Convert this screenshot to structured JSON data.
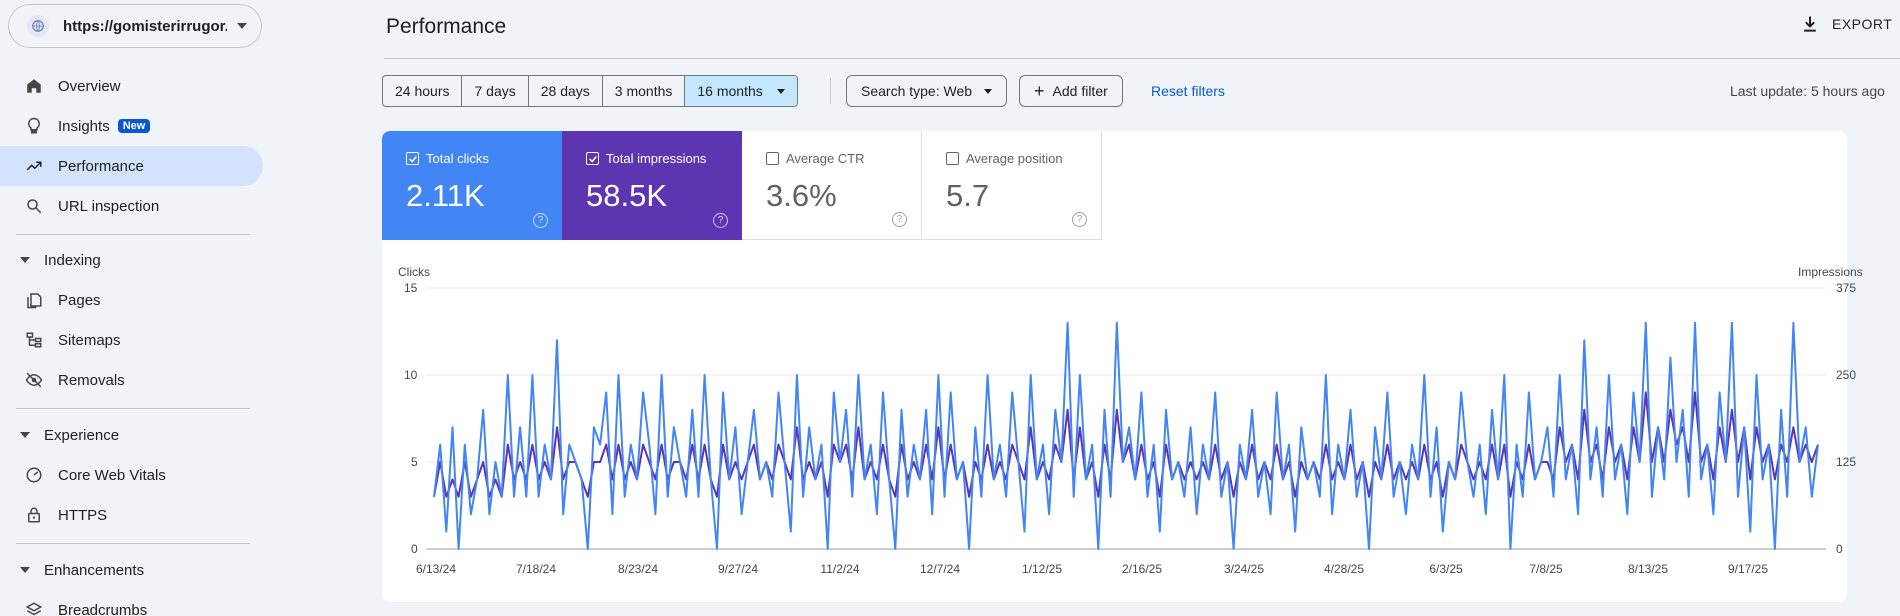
{
  "property": {
    "url": "https://gomisterirrugor..."
  },
  "nav": {
    "overview": "Overview",
    "insights": "Insights",
    "insights_badge": "New",
    "performance": "Performance",
    "url_inspection": "URL inspection",
    "indexing": "Indexing",
    "pages": "Pages",
    "sitemaps": "Sitemaps",
    "removals": "Removals",
    "experience": "Experience",
    "core_web_vitals": "Core Web Vitals",
    "https": "HTTPS",
    "enhancements": "Enhancements",
    "breadcrumbs": "Breadcrumbs"
  },
  "header": {
    "title": "Performance",
    "export_label": "EXPORT"
  },
  "filters": {
    "ranges": [
      "24 hours",
      "7 days",
      "28 days",
      "3 months",
      "16 months"
    ],
    "selected_range": "16 months",
    "search_type": "Search type: Web",
    "add_filter": "Add filter",
    "reset": "Reset filters",
    "last_update": "Last update: 5 hours ago"
  },
  "metrics": {
    "clicks": {
      "label": "Total clicks",
      "value": "2.11K",
      "checked": true,
      "color": "#4285f4"
    },
    "impressions": {
      "label": "Total impressions",
      "value": "58.5K",
      "checked": true,
      "color": "#5e35b1"
    },
    "ctr": {
      "label": "Average CTR",
      "value": "3.6%",
      "checked": false
    },
    "position": {
      "label": "Average position",
      "value": "5.7",
      "checked": false
    }
  },
  "chart_data": {
    "type": "line",
    "left_axis_label": "Clicks",
    "right_axis_label": "Impressions",
    "left_ylim": [
      0,
      15
    ],
    "right_ylim": [
      0,
      375
    ],
    "left_ticks": [
      "15",
      "10",
      "5",
      "0"
    ],
    "right_ticks": [
      "375",
      "250",
      "125",
      "0"
    ],
    "x_ticks": [
      "6/13/24",
      "7/18/24",
      "8/23/24",
      "9/27/24",
      "11/2/24",
      "12/7/24",
      "1/12/25",
      "2/16/25",
      "3/24/25",
      "4/28/25",
      "6/3/25",
      "7/8/25",
      "8/13/25",
      "9/17/25"
    ],
    "grid": true,
    "series": [
      {
        "name": "Clicks",
        "axis": "left",
        "color": "#4285f4",
        "values": [
          3,
          6,
          1,
          7,
          0,
          6,
          2,
          4,
          8,
          2,
          5,
          3,
          10,
          3,
          7,
          3,
          10,
          3,
          6,
          4,
          12,
          2,
          6,
          5,
          4,
          0,
          7,
          6,
          9,
          2,
          10,
          3,
          6,
          4,
          9,
          6,
          2,
          10,
          3,
          7,
          5,
          3,
          8,
          3,
          10,
          4,
          0,
          9,
          4,
          7,
          2,
          5,
          8,
          4,
          5,
          3,
          9,
          5,
          1,
          10,
          3,
          7,
          4,
          6,
          0,
          9,
          5,
          8,
          3,
          10,
          4,
          6,
          2,
          9,
          4,
          0,
          8,
          3,
          6,
          4,
          8,
          2,
          10,
          3,
          9,
          4,
          5,
          0,
          7,
          3,
          10,
          4,
          6,
          3,
          9,
          5,
          1,
          10,
          4,
          6,
          2,
          8,
          5,
          13,
          3,
          10,
          4,
          6,
          0,
          8,
          3,
          13,
          5,
          7,
          4,
          9,
          3,
          6,
          1,
          8,
          4,
          5,
          3,
          7,
          2,
          6,
          4,
          9,
          3,
          5,
          0,
          6,
          4,
          8,
          3,
          5,
          2,
          9,
          4,
          6,
          1,
          7,
          4,
          5,
          3,
          10,
          2,
          6,
          4,
          8,
          3,
          5,
          0,
          7,
          4,
          9,
          3,
          5,
          2,
          6,
          4,
          10,
          3,
          7,
          1,
          5,
          4,
          9,
          5,
          3,
          6,
          2,
          8,
          4,
          10,
          0,
          6,
          3,
          9,
          4,
          5,
          7,
          3,
          10,
          4,
          6,
          2,
          12,
          4,
          7,
          3,
          10,
          4,
          6,
          2,
          9,
          5,
          13,
          3,
          7,
          4,
          11,
          5,
          8,
          3,
          13,
          4,
          6,
          2,
          9,
          5,
          13,
          3,
          7,
          1,
          10,
          4,
          6,
          0,
          8,
          3,
          13,
          5,
          7,
          3,
          6
        ]
      },
      {
        "name": "Impressions",
        "axis": "left_scaled",
        "color": "#5e35b1",
        "values": [
          3,
          5,
          3,
          4,
          3,
          5,
          3,
          4,
          5,
          3,
          4,
          3,
          6,
          4,
          5,
          4,
          6,
          4,
          5,
          4,
          7,
          4,
          5,
          5,
          4,
          3,
          5,
          5,
          6,
          4,
          6,
          4,
          5,
          4,
          6,
          5,
          4,
          6,
          4,
          5,
          5,
          4,
          6,
          4,
          6,
          4,
          3,
          6,
          4,
          5,
          4,
          5,
          6,
          4,
          5,
          4,
          6,
          5,
          4,
          7,
          4,
          5,
          4,
          5,
          3,
          6,
          5,
          6,
          4,
          7,
          4,
          5,
          4,
          6,
          4,
          3,
          6,
          4,
          5,
          4,
          6,
          4,
          7,
          4,
          6,
          4,
          5,
          3,
          5,
          4,
          6,
          4,
          5,
          4,
          6,
          5,
          4,
          7,
          4,
          5,
          4,
          6,
          5,
          8,
          4,
          7,
          4,
          5,
          3,
          6,
          4,
          8,
          5,
          6,
          4,
          6,
          4,
          5,
          3,
          6,
          4,
          5,
          4,
          5,
          4,
          5,
          4,
          6,
          4,
          5,
          3,
          5,
          4,
          6,
          4,
          5,
          4,
          6,
          4,
          5,
          3,
          5,
          4,
          5,
          4,
          6,
          4,
          5,
          4,
          6,
          4,
          5,
          3,
          5,
          4,
          6,
          4,
          5,
          4,
          5,
          4,
          6,
          4,
          5,
          3,
          5,
          4,
          6,
          5,
          4,
          5,
          4,
          6,
          4,
          6,
          3,
          5,
          4,
          6,
          4,
          5,
          5,
          4,
          7,
          5,
          6,
          4,
          8,
          5,
          6,
          4,
          7,
          5,
          6,
          4,
          7,
          5,
          9,
          5,
          7,
          5,
          8,
          6,
          7,
          5,
          9,
          5,
          6,
          4,
          7,
          5,
          8,
          5,
          7,
          4,
          7,
          5,
          6,
          4,
          6,
          5,
          7,
          5,
          6,
          5,
          6
        ]
      }
    ]
  }
}
